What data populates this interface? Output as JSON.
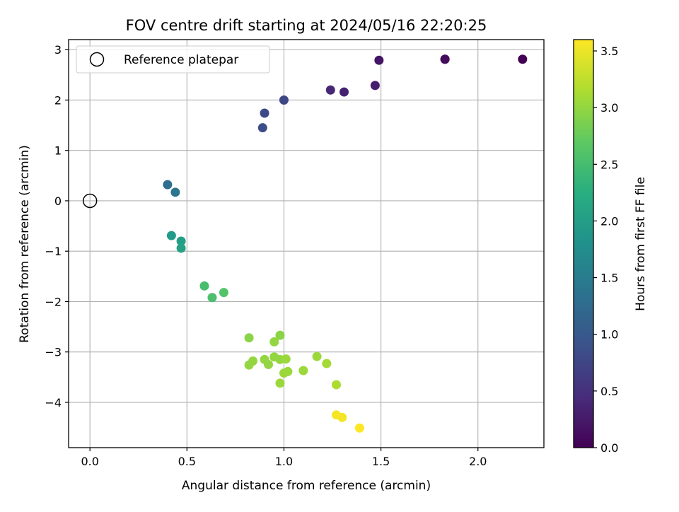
{
  "chart_data": {
    "type": "scatter",
    "title": "FOV centre drift starting at 2024/05/16 22:20:25",
    "xlabel": "Angular distance from reference (arcmin)",
    "ylabel": "Rotation from reference (arcmin)",
    "xlim": [
      -0.11,
      2.34
    ],
    "ylim": [
      -4.9,
      3.2
    ],
    "xticks": [
      0.0,
      0.5,
      1.0,
      1.5,
      2.0
    ],
    "xtick_labels": [
      "0.0",
      "0.5",
      "1.0",
      "1.5",
      "2.0"
    ],
    "yticks": [
      -4,
      -3,
      -2,
      -1,
      0,
      1,
      2,
      3
    ],
    "ytick_labels": [
      "−4",
      "−3",
      "−2",
      "−1",
      "0",
      "1",
      "2",
      "3"
    ],
    "grid": true,
    "legend_position": "top-left",
    "reference": {
      "name": "Reference platepar",
      "x": 0,
      "y": 0
    },
    "colorbar": {
      "label": "Hours from first FF file",
      "colormap": "viridis",
      "range": [
        0,
        3.6
      ],
      "ticks": [
        0.0,
        0.5,
        1.0,
        1.5,
        2.0,
        2.5,
        3.0,
        3.5
      ],
      "tick_labels": [
        "0.0",
        "0.5",
        "1.0",
        "1.5",
        "2.0",
        "2.5",
        "3.0",
        "3.5"
      ]
    },
    "points": [
      {
        "x": 2.23,
        "y": 2.81,
        "hours": 0.0
      },
      {
        "x": 1.83,
        "y": 2.81,
        "hours": 0.05
      },
      {
        "x": 1.83,
        "y": 2.81,
        "hours": 0.1
      },
      {
        "x": 1.49,
        "y": 2.79,
        "hours": 0.2
      },
      {
        "x": 1.47,
        "y": 2.29,
        "hours": 0.3
      },
      {
        "x": 1.31,
        "y": 2.16,
        "hours": 0.35
      },
      {
        "x": 1.24,
        "y": 2.2,
        "hours": 0.4
      },
      {
        "x": 1.0,
        "y": 2.0,
        "hours": 0.75
      },
      {
        "x": 0.9,
        "y": 1.74,
        "hours": 0.8
      },
      {
        "x": 0.89,
        "y": 1.45,
        "hours": 0.85
      },
      {
        "x": 0.4,
        "y": 0.32,
        "hours": 1.3
      },
      {
        "x": 0.44,
        "y": 0.17,
        "hours": 1.4
      },
      {
        "x": 0.42,
        "y": -0.69,
        "hours": 1.95
      },
      {
        "x": 0.47,
        "y": -0.8,
        "hours": 2.0
      },
      {
        "x": 0.47,
        "y": -0.94,
        "hours": 2.05
      },
      {
        "x": 0.59,
        "y": -1.69,
        "hours": 2.5
      },
      {
        "x": 0.63,
        "y": -1.92,
        "hours": 2.55
      },
      {
        "x": 0.69,
        "y": -1.82,
        "hours": 2.6
      },
      {
        "x": 0.82,
        "y": -2.72,
        "hours": 2.95
      },
      {
        "x": 0.98,
        "y": -2.67,
        "hours": 2.95
      },
      {
        "x": 0.95,
        "y": -2.8,
        "hours": 3.0
      },
      {
        "x": 0.82,
        "y": -3.26,
        "hours": 3.0
      },
      {
        "x": 0.84,
        "y": -3.18,
        "hours": 3.0
      },
      {
        "x": 0.9,
        "y": -3.15,
        "hours": 3.0
      },
      {
        "x": 0.92,
        "y": -3.25,
        "hours": 3.0
      },
      {
        "x": 0.95,
        "y": -3.1,
        "hours": 3.0
      },
      {
        "x": 0.98,
        "y": -3.15,
        "hours": 3.0
      },
      {
        "x": 1.01,
        "y": -3.14,
        "hours": 3.05
      },
      {
        "x": 1.0,
        "y": -3.42,
        "hours": 3.05
      },
      {
        "x": 1.02,
        "y": -3.39,
        "hours": 3.05
      },
      {
        "x": 0.98,
        "y": -3.62,
        "hours": 3.05
      },
      {
        "x": 1.1,
        "y": -3.37,
        "hours": 3.05
      },
      {
        "x": 1.17,
        "y": -3.09,
        "hours": 3.05
      },
      {
        "x": 1.22,
        "y": -3.23,
        "hours": 3.1
      },
      {
        "x": 1.27,
        "y": -3.65,
        "hours": 3.15
      },
      {
        "x": 1.27,
        "y": -4.25,
        "hours": 3.55
      },
      {
        "x": 1.3,
        "y": -4.3,
        "hours": 3.55
      },
      {
        "x": 1.39,
        "y": -4.51,
        "hours": 3.6
      }
    ]
  }
}
